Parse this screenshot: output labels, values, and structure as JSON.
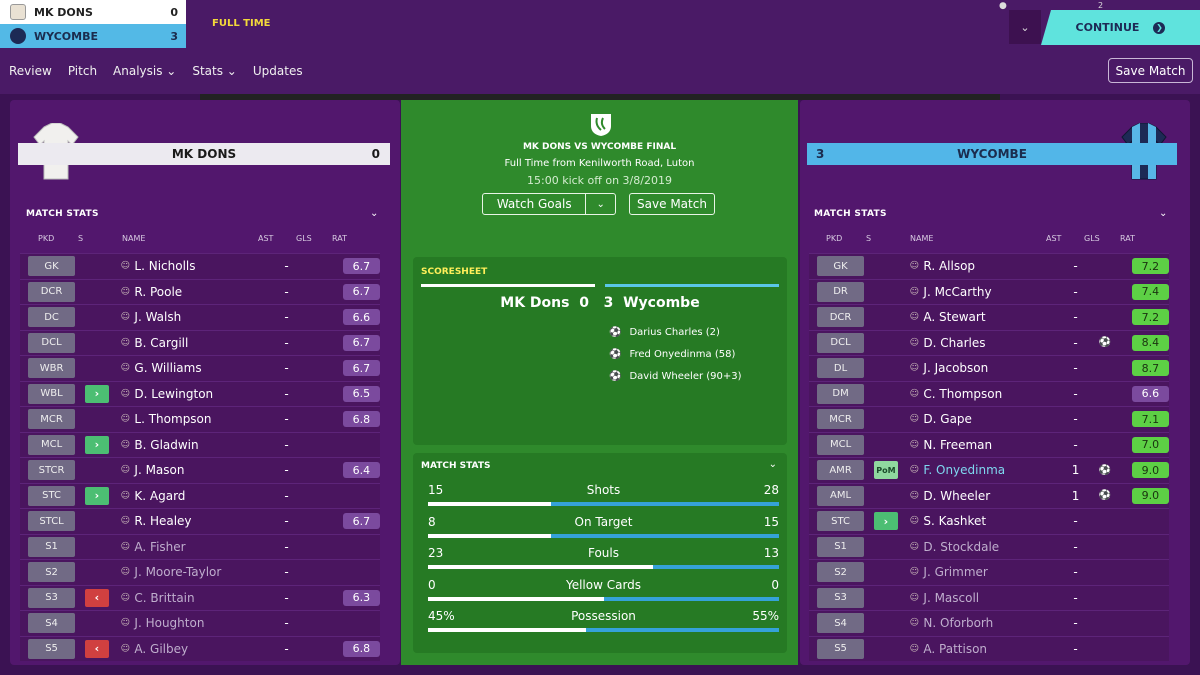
{
  "scorebar": {
    "home": {
      "name": "MK DONS",
      "score": "0"
    },
    "away": {
      "name": "WYCOMBE",
      "score": "3"
    },
    "status": "FULL TIME"
  },
  "topright": {
    "badge_count": "2",
    "continue_label": "CONTINUE"
  },
  "nav": {
    "items": [
      "Review",
      "Pitch",
      "Analysis ⌄",
      "Stats ⌄",
      "Updates"
    ],
    "save_label": "Save Match"
  },
  "center": {
    "title": "MK DONS VS WYCOMBE FINAL",
    "subtitle": "Full Time from Kenilworth Road, Luton",
    "kickoff": "15:00 kick off on 3/8/2019",
    "watch_goals": "Watch Goals",
    "save_match": "Save Match",
    "scoresheet": {
      "heading": "SCORESHEET",
      "home": "MK Dons",
      "home_score": "0",
      "away_score": "3",
      "away": "Wycombe",
      "goals": [
        "Darius Charles (2)",
        "Fred Onyedinma (58)",
        "David Wheeler (90+3)"
      ]
    },
    "match_stats": {
      "heading": "MATCH STATS",
      "stats": [
        {
          "label": "Shots",
          "home": "15",
          "away": "28",
          "home_frac": 0.35
        },
        {
          "label": "On Target",
          "home": "8",
          "away": "15",
          "home_frac": 0.35
        },
        {
          "label": "Fouls",
          "home": "23",
          "away": "13",
          "home_frac": 0.64
        },
        {
          "label": "Yellow Cards",
          "home": "0",
          "away": "0",
          "home_frac": 0.5
        },
        {
          "label": "Possession",
          "home": "45%",
          "away": "55%",
          "home_frac": 0.45
        }
      ]
    }
  },
  "left": {
    "team": "MK DONS",
    "score": "0",
    "stats_heading": "MATCH STATS",
    "headers": {
      "pkd": "PKD",
      "s": "S",
      "name": "NAME",
      "ast": "AST",
      "gls": "GLS",
      "rat": "RAT"
    },
    "players": [
      {
        "pos": "GK",
        "sub": "",
        "name": "L. Nicholls",
        "ast": "-",
        "gls": "",
        "rat": "6.7",
        "dim": false
      },
      {
        "pos": "DCR",
        "sub": "",
        "name": "R. Poole",
        "ast": "-",
        "gls": "",
        "rat": "6.7",
        "dim": false
      },
      {
        "pos": "DC",
        "sub": "",
        "name": "J. Walsh",
        "ast": "-",
        "gls": "",
        "rat": "6.6",
        "dim": false
      },
      {
        "pos": "DCL",
        "sub": "",
        "name": "B. Cargill",
        "ast": "-",
        "gls": "",
        "rat": "6.7",
        "dim": false
      },
      {
        "pos": "WBR",
        "sub": "",
        "name": "G. Williams",
        "ast": "-",
        "gls": "",
        "rat": "6.7",
        "dim": false
      },
      {
        "pos": "WBL",
        "sub": "in",
        "name": "D. Lewington",
        "ast": "-",
        "gls": "",
        "rat": "6.5",
        "dim": false
      },
      {
        "pos": "MCR",
        "sub": "",
        "name": "L. Thompson",
        "ast": "-",
        "gls": "",
        "rat": "6.8",
        "dim": false
      },
      {
        "pos": "MCL",
        "sub": "in",
        "name": "B. Gladwin",
        "ast": "-",
        "gls": "",
        "rat": "",
        "dim": false
      },
      {
        "pos": "STCR",
        "sub": "",
        "name": "J. Mason",
        "ast": "-",
        "gls": "",
        "rat": "6.4",
        "dim": false
      },
      {
        "pos": "STC",
        "sub": "in",
        "name": "K. Agard",
        "ast": "-",
        "gls": "",
        "rat": "",
        "dim": false
      },
      {
        "pos": "STCL",
        "sub": "",
        "name": "R. Healey",
        "ast": "-",
        "gls": "",
        "rat": "6.7",
        "dim": false
      },
      {
        "pos": "S1",
        "sub": "",
        "name": "A. Fisher",
        "ast": "-",
        "gls": "",
        "rat": "",
        "dim": true
      },
      {
        "pos": "S2",
        "sub": "",
        "name": "J. Moore-Taylor",
        "ast": "-",
        "gls": "",
        "rat": "",
        "dim": true
      },
      {
        "pos": "S3",
        "sub": "out",
        "name": "C. Brittain",
        "ast": "-",
        "gls": "",
        "rat": "6.3",
        "dim": true
      },
      {
        "pos": "S4",
        "sub": "",
        "name": "J. Houghton",
        "ast": "-",
        "gls": "",
        "rat": "",
        "dim": true
      },
      {
        "pos": "S5",
        "sub": "out",
        "name": "A. Gilbey",
        "ast": "-",
        "gls": "",
        "rat": "6.8",
        "dim": true
      }
    ]
  },
  "right": {
    "team": "WYCOMBE",
    "score": "3",
    "stats_heading": "MATCH STATS",
    "headers": {
      "pkd": "PKD",
      "s": "S",
      "name": "NAME",
      "ast": "AST",
      "gls": "GLS",
      "rat": "RAT"
    },
    "players": [
      {
        "pos": "GK",
        "sub": "",
        "name": "R. Allsop",
        "ast": "-",
        "gls": "",
        "rat": "7.2",
        "dim": false
      },
      {
        "pos": "DR",
        "sub": "",
        "name": "J. McCarthy",
        "ast": "-",
        "gls": "",
        "rat": "7.4",
        "dim": false
      },
      {
        "pos": "DCR",
        "sub": "",
        "name": "A. Stewart",
        "ast": "-",
        "gls": "",
        "rat": "7.2",
        "dim": false
      },
      {
        "pos": "DCL",
        "sub": "",
        "name": "D. Charles",
        "ast": "-",
        "gls": "⚽",
        "rat": "8.4",
        "dim": false
      },
      {
        "pos": "DL",
        "sub": "",
        "name": "J. Jacobson",
        "ast": "-",
        "gls": "",
        "rat": "8.7",
        "dim": false
      },
      {
        "pos": "DM",
        "sub": "",
        "name": "C. Thompson",
        "ast": "-",
        "gls": "",
        "rat": "6.6",
        "dim": false
      },
      {
        "pos": "MCR",
        "sub": "",
        "name": "D. Gape",
        "ast": "-",
        "gls": "",
        "rat": "7.1",
        "dim": false
      },
      {
        "pos": "MCL",
        "sub": "",
        "name": "N. Freeman",
        "ast": "-",
        "gls": "",
        "rat": "7.0",
        "dim": false
      },
      {
        "pos": "AMR",
        "sub": "pom",
        "name": "F. Onyedinma",
        "ast": "1",
        "gls": "⚽",
        "rat": "9.0",
        "dim": false
      },
      {
        "pos": "AML",
        "sub": "",
        "name": "D. Wheeler",
        "ast": "1",
        "gls": "⚽",
        "rat": "9.0",
        "dim": false
      },
      {
        "pos": "STC",
        "sub": "in",
        "name": "S. Kashket",
        "ast": "-",
        "gls": "",
        "rat": "",
        "dim": false
      },
      {
        "pos": "S1",
        "sub": "",
        "name": "D. Stockdale",
        "ast": "-",
        "gls": "",
        "rat": "",
        "dim": true
      },
      {
        "pos": "S2",
        "sub": "",
        "name": "J. Grimmer",
        "ast": "-",
        "gls": "",
        "rat": "",
        "dim": true
      },
      {
        "pos": "S3",
        "sub": "",
        "name": "J. Mascoll",
        "ast": "-",
        "gls": "",
        "rat": "",
        "dim": true
      },
      {
        "pos": "S4",
        "sub": "",
        "name": "N. Oforborh",
        "ast": "-",
        "gls": "",
        "rat": "",
        "dim": true
      },
      {
        "pos": "S5",
        "sub": "",
        "name": "A. Pattison",
        "ast": "-",
        "gls": "",
        "rat": "",
        "dim": true
      }
    ]
  },
  "labels": {
    "pom": "PoM"
  },
  "colors": {
    "accent": "#5fe3dd",
    "panel": "#52176d",
    "pitch": "#2f8a2c",
    "rating_good": "#5dd045",
    "rating_avg": "#7b4a9e"
  }
}
